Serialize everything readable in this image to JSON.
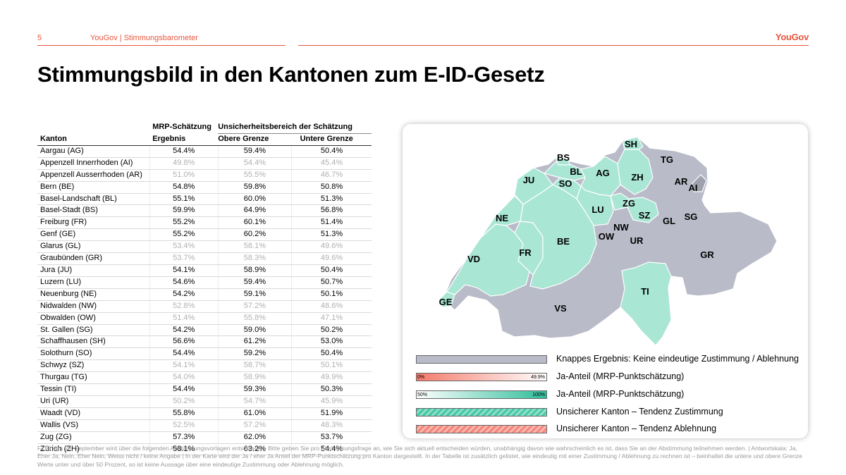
{
  "header": {
    "page_number": "5",
    "source": "YouGov | Stimmungsbarometer",
    "logo": "YouGov"
  },
  "title": "Stimmungsbild in den Kantonen zum E-ID-Gesetz",
  "table": {
    "group_header_1": "MRP-Schätzung",
    "group_header_2": "Unsicherheitsbereich der Schätzung",
    "col_kanton": "Kanton",
    "col_result": "Ergebnis",
    "col_upper": "Obere Grenze",
    "col_lower": "Untere Grenze",
    "rows": [
      {
        "name": "Aargau (AG)",
        "result": "54.4%",
        "upper": "59.4%",
        "lower": "50.4%",
        "dim": false
      },
      {
        "name": "Appenzell Innerrhoden (AI)",
        "result": "49.8%",
        "upper": "54.4%",
        "lower": "45.4%",
        "dim": true
      },
      {
        "name": "Appenzell Ausserrhoden (AR)",
        "result": "51.0%",
        "upper": "55.5%",
        "lower": "46.7%",
        "dim": true
      },
      {
        "name": "Bern (BE)",
        "result": "54.8%",
        "upper": "59.8%",
        "lower": "50.8%",
        "dim": false
      },
      {
        "name": "Basel-Landschaft (BL)",
        "result": "55.1%",
        "upper": "60.0%",
        "lower": "51.3%",
        "dim": false
      },
      {
        "name": "Basel-Stadt (BS)",
        "result": "59.9%",
        "upper": "64.9%",
        "lower": "56.8%",
        "dim": false
      },
      {
        "name": "Freiburg (FR)",
        "result": "55.2%",
        "upper": "60.1%",
        "lower": "51.4%",
        "dim": false
      },
      {
        "name": "Genf (GE)",
        "result": "55.2%",
        "upper": "60.2%",
        "lower": "51.3%",
        "dim": false
      },
      {
        "name": "Glarus (GL)",
        "result": "53.4%",
        "upper": "58.1%",
        "lower": "49.6%",
        "dim": true
      },
      {
        "name": "Graubünden (GR)",
        "result": "53.7%",
        "upper": "58.3%",
        "lower": "49.6%",
        "dim": true
      },
      {
        "name": "Jura (JU)",
        "result": "54.1%",
        "upper": "58.9%",
        "lower": "50.4%",
        "dim": false
      },
      {
        "name": "Luzern (LU)",
        "result": "54.6%",
        "upper": "59.4%",
        "lower": "50.7%",
        "dim": false
      },
      {
        "name": "Neuenburg (NE)",
        "result": "54.2%",
        "upper": "59.1%",
        "lower": "50.1%",
        "dim": false
      },
      {
        "name": "Nidwalden (NW)",
        "result": "52.8%",
        "upper": "57.2%",
        "lower": "48.6%",
        "dim": true
      },
      {
        "name": "Obwalden (OW)",
        "result": "51.4%",
        "upper": "55.8%",
        "lower": "47.1%",
        "dim": true
      },
      {
        "name": "St. Gallen (SG)",
        "result": "54.2%",
        "upper": "59.0%",
        "lower": "50.2%",
        "dim": false
      },
      {
        "name": "Schaffhausen (SH)",
        "result": "56.6%",
        "upper": "61.2%",
        "lower": "53.0%",
        "dim": false
      },
      {
        "name": "Solothurn (SO)",
        "result": "54.4%",
        "upper": "59.2%",
        "lower": "50.4%",
        "dim": false
      },
      {
        "name": "Schwyz (SZ)",
        "result": "54.1%",
        "upper": "58.7%",
        "lower": "50.1%",
        "dim": true
      },
      {
        "name": "Thurgau (TG)",
        "result": "54.0%",
        "upper": "58.9%",
        "lower": "49.9%",
        "dim": true
      },
      {
        "name": "Tessin (TI)",
        "result": "54.4%",
        "upper": "59.3%",
        "lower": "50.3%",
        "dim": false
      },
      {
        "name": "Uri (UR)",
        "result": "50.2%",
        "upper": "54.7%",
        "lower": "45.9%",
        "dim": true
      },
      {
        "name": "Waadt (VD)",
        "result": "55.8%",
        "upper": "61.0%",
        "lower": "51.9%",
        "dim": false
      },
      {
        "name": "Wallis (VS)",
        "result": "52.5%",
        "upper": "57.2%",
        "lower": "48.3%",
        "dim": true
      },
      {
        "name": "Zug (ZG)",
        "result": "57.3%",
        "upper": "62.0%",
        "lower": "53.7%",
        "dim": false
      },
      {
        "name": "Zürich (ZH)",
        "result": "58.1%",
        "upper": "63.2%",
        "lower": "54.4%",
        "dim": false
      }
    ]
  },
  "map": {
    "colors": {
      "green": "#a9e6d4",
      "grey": "#b9bcc8",
      "border": "#ffffff"
    },
    "labels": [
      "SH",
      "BS",
      "TG",
      "BL",
      "AG",
      "JU",
      "SO",
      "ZH",
      "AR",
      "AI",
      "ZG",
      "LU",
      "SZ",
      "SG",
      "NE",
      "GL",
      "NW",
      "OW",
      "UR",
      "BE",
      "FR",
      "GR",
      "VD",
      "TI",
      "GE",
      "VS"
    ]
  },
  "legend": [
    {
      "text": "Knappes Ergebnis: Keine eindeutige Zustimmung / Ablehnung",
      "swatch": "grey"
    },
    {
      "text": "Ja-Anteil (MRP-Punktschätzung)",
      "swatch": "red",
      "left_label": "0%",
      "right_label": "49.9%"
    },
    {
      "text": "Ja-Anteil (MRP-Punktschätzung)",
      "swatch": "green",
      "left_label": "50%",
      "right_label": "100%"
    },
    {
      "text": "Unsicherer Kanton – Tendenz Zustimmung",
      "swatch": "hatch-green"
    },
    {
      "text": "Unsicherer Kanton – Tendenz Ablehnung",
      "swatch": "hatch-red"
    }
  ],
  "footnote": "F110: Am 28. September wird über die folgenden Abstimmungsvorlagen entschieden. Bitte geben Sie pro Abstimmungsfrage an, wie Sie sich aktuell entscheiden würden, unabhängig davon wie wahrscheinlich es ist, dass Sie an der Abstimmung teilnehmen werden. | Antwortskala: Ja, Eher Ja, Nein, Eher Nein, Weiss nicht / keine Angabe | In der Karte wird der Ja / eher Ja Anteil der MRP-Punktschätzung pro Kanton dargestellt. In der Tabelle ist zusätzlich gelistet, wie eindeutig mit einer Zustimmung / Ablehnung zu rechnen ist – beinhaltet die untere und obere Grenze Werte unter und über 50 Prozent, so ist keine Aussage über eine eindeutige Zustimmung oder Ablehnung möglich."
}
